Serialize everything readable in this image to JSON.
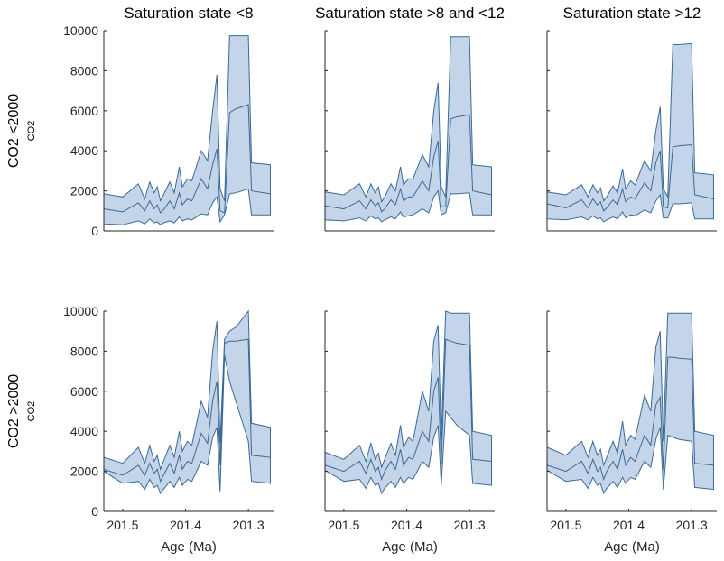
{
  "chart_data": {
    "type": "area",
    "layout": "2x3 grid of panels",
    "xlabel": "Age (Ma)",
    "x_reversed": true,
    "xlim": [
      201.53,
      201.26
    ],
    "ylim": [
      0,
      10000
    ],
    "y_ticks": [
      0,
      2000,
      4000,
      6000,
      8000,
      10000
    ],
    "x_ticks": [
      201.5,
      201.4,
      201.3
    ],
    "column_titles": [
      "Saturation state <8",
      "Saturation state >8 and <12",
      "Saturation state >12"
    ],
    "row_labels": [
      {
        "main": "CO2 <2000",
        "sub": "CO2"
      },
      {
        "main": "CO2 >2000",
        "sub": "CO2"
      }
    ],
    "grid": false,
    "colors": {
      "band_fill": "#3b74b8",
      "line": "#3a6a96",
      "axis": "#262626"
    },
    "x": [
      201.53,
      201.5,
      201.475,
      201.465,
      201.457,
      201.45,
      201.445,
      201.44,
      201.435,
      201.425,
      201.418,
      201.41,
      201.405,
      201.397,
      201.39,
      201.375,
      201.365,
      201.357,
      201.35,
      201.345,
      201.338,
      201.33,
      201.32,
      201.3,
      201.295,
      201.265
    ],
    "panels": [
      {
        "row": 0,
        "col": 0,
        "upper": [
          1850,
          1700,
          2350,
          1600,
          2450,
          1900,
          2200,
          1500,
          1800,
          2450,
          1900,
          3200,
          2200,
          2600,
          2500,
          4000,
          3500,
          6000,
          7800,
          2100,
          1500,
          9750,
          9750,
          9750,
          3400,
          3300
        ],
        "median": [
          1100,
          950,
          1400,
          1000,
          1500,
          1100,
          1300,
          900,
          1050,
          1500,
          1100,
          1900,
          1300,
          1600,
          1500,
          2600,
          2100,
          3300,
          4100,
          1000,
          900,
          5900,
          6100,
          6300,
          2000,
          1850
        ],
        "lower": [
          350,
          300,
          500,
          350,
          600,
          400,
          450,
          300,
          400,
          500,
          400,
          700,
          500,
          600,
          550,
          850,
          800,
          1400,
          1700,
          450,
          800,
          1850,
          1900,
          2100,
          800,
          800
        ]
      },
      {
        "row": 0,
        "col": 1,
        "upper": [
          1950,
          1800,
          2350,
          1700,
          2350,
          1900,
          2200,
          1450,
          1700,
          2350,
          2000,
          3200,
          2300,
          2600,
          2600,
          3800,
          3200,
          6000,
          7400,
          2200,
          1700,
          9700,
          9700,
          9700,
          3300,
          3200
        ],
        "median": [
          1250,
          1100,
          1500,
          1100,
          1550,
          1250,
          1400,
          950,
          1100,
          1550,
          1300,
          2100,
          1500,
          1700,
          1700,
          2500,
          2000,
          3700,
          4500,
          1200,
          1200,
          5600,
          5700,
          5800,
          2000,
          1800
        ],
        "lower": [
          550,
          500,
          650,
          500,
          750,
          600,
          650,
          450,
          550,
          700,
          600,
          950,
          700,
          750,
          800,
          1100,
          900,
          1700,
          2000,
          800,
          900,
          1850,
          1850,
          1900,
          800,
          800
        ]
      },
      {
        "row": 0,
        "col": 2,
        "upper": [
          1950,
          1800,
          2300,
          1700,
          2300,
          1900,
          2150,
          1500,
          1700,
          2250,
          1900,
          3100,
          2100,
          2500,
          2300,
          3500,
          3000,
          5000,
          6200,
          2100,
          1700,
          9300,
          9300,
          9350,
          2900,
          2800
        ],
        "median": [
          1350,
          1150,
          1550,
          1150,
          1600,
          1300,
          1450,
          1000,
          1150,
          1550,
          1300,
          2100,
          1450,
          1700,
          1600,
          2400,
          2000,
          3400,
          4000,
          1200,
          1150,
          4200,
          4250,
          4300,
          1800,
          1600
        ],
        "lower": [
          600,
          550,
          700,
          550,
          750,
          600,
          650,
          450,
          550,
          700,
          600,
          950,
          650,
          800,
          750,
          1050,
          900,
          1500,
          1800,
          650,
          650,
          1350,
          1350,
          1400,
          600,
          600
        ]
      },
      {
        "row": 1,
        "col": 0,
        "upper": [
          2700,
          2400,
          3200,
          2400,
          3300,
          2500,
          2800,
          2100,
          2500,
          3300,
          2700,
          4000,
          3000,
          3500,
          3300,
          5500,
          4700,
          8000,
          9500,
          3400,
          8600,
          9000,
          9200,
          10000,
          4400,
          4200
        ],
        "median": [
          2100,
          1800,
          2300,
          1800,
          2400,
          1900,
          2100,
          1500,
          1800,
          2400,
          1900,
          2800,
          2100,
          2500,
          2400,
          3900,
          3400,
          5500,
          6500,
          2300,
          8400,
          8500,
          8500,
          8600,
          2800,
          2700
        ],
        "lower": [
          2000,
          1400,
          1500,
          1100,
          1600,
          1200,
          1300,
          900,
          1100,
          1500,
          1200,
          1700,
          1300,
          1600,
          1500,
          2500,
          2300,
          3700,
          4200,
          1000,
          7800,
          6500,
          5500,
          3500,
          1500,
          1400
        ]
      },
      {
        "row": 1,
        "col": 1,
        "upper": [
          2950,
          2600,
          3300,
          2500,
          3400,
          2600,
          2900,
          2200,
          2600,
          3400,
          2800,
          4300,
          3200,
          3700,
          3500,
          6000,
          5000,
          8500,
          9300,
          3600,
          10000,
          9900,
          9900,
          9900,
          4000,
          3800
        ],
        "median": [
          2300,
          2000,
          2500,
          1900,
          2600,
          2000,
          2200,
          1600,
          2000,
          2500,
          2100,
          3100,
          2300,
          2700,
          2600,
          4000,
          3500,
          6000,
          6700,
          2300,
          8600,
          8500,
          8400,
          8300,
          2600,
          2500
        ],
        "lower": [
          2050,
          1500,
          1600,
          1150,
          1700,
          1300,
          1400,
          900,
          1150,
          1500,
          1200,
          1700,
          1400,
          1700,
          1600,
          2500,
          2200,
          3700,
          4300,
          1300,
          5000,
          4700,
          4300,
          3800,
          1400,
          1300
        ]
      },
      {
        "row": 1,
        "col": 2,
        "upper": [
          3200,
          2800,
          3500,
          2700,
          3500,
          2800,
          3100,
          2300,
          2700,
          3500,
          2900,
          4500,
          3300,
          3800,
          3600,
          5800,
          5000,
          8200,
          9000,
          3500,
          9900,
          9900,
          9900,
          9900,
          4000,
          3800
        ],
        "median": [
          2300,
          2000,
          2500,
          1900,
          2600,
          2000,
          2200,
          1600,
          2000,
          2500,
          2100,
          3100,
          2300,
          2700,
          2500,
          3800,
          3300,
          5300,
          5700,
          2100,
          7700,
          7700,
          7650,
          7600,
          2400,
          2300
        ],
        "lower": [
          2050,
          1500,
          1600,
          1150,
          1700,
          1300,
          1400,
          900,
          1150,
          1500,
          1200,
          1700,
          1400,
          1700,
          1600,
          2500,
          2200,
          3600,
          4200,
          1100,
          3800,
          3700,
          3600,
          3500,
          1200,
          1100
        ]
      }
    ]
  }
}
